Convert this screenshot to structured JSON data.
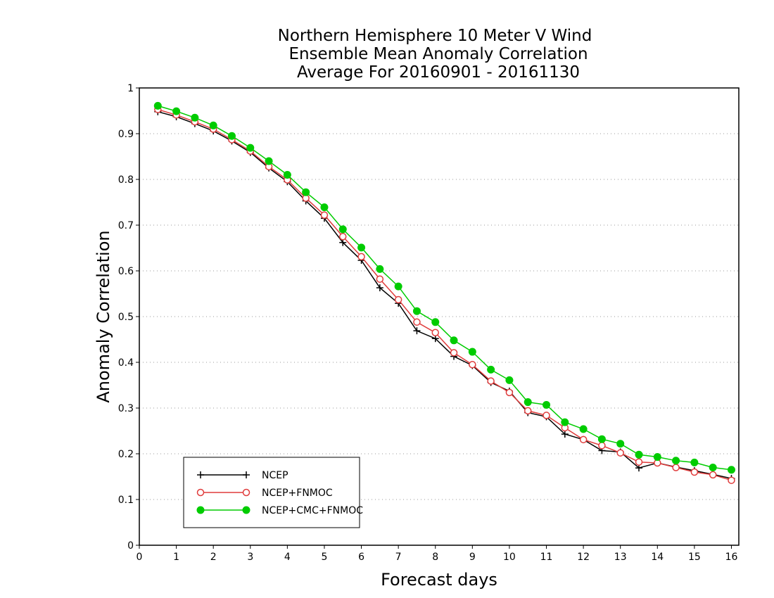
{
  "chart_data": {
    "type": "line",
    "title": [
      "Northern Hemisphere 10 Meter V Wind",
      "Ensemble Mean Anomaly Correlation",
      "Average For 20160901 - 20161130"
    ],
    "xlabel": "Forecast days",
    "ylabel": "Anomaly Correlation",
    "xlim": [
      0,
      16.2
    ],
    "ylim": [
      0,
      1
    ],
    "x_ticks": [
      0,
      1,
      2,
      3,
      4,
      5,
      6,
      7,
      8,
      9,
      10,
      11,
      12,
      13,
      14,
      15,
      16
    ],
    "y_ticks": [
      0,
      0.1,
      0.2,
      0.3,
      0.4,
      0.5,
      0.6,
      0.7,
      0.8,
      0.9,
      1
    ],
    "y_tick_labels": [
      "0",
      "0.1",
      "0.2",
      "0.3",
      "0.4",
      "0.5",
      "0.6",
      "0.7",
      "0.8",
      "0.9",
      "1"
    ],
    "grid": "horizontal dotted",
    "legend_position": "bottom-left",
    "x": [
      0.5,
      1,
      1.5,
      2,
      2.5,
      3,
      3.5,
      4,
      4.5,
      5,
      5.5,
      6,
      6.5,
      7,
      7.5,
      8,
      8.5,
      9,
      9.5,
      10,
      10.5,
      11,
      11.5,
      12,
      12.5,
      13,
      13.5,
      14,
      14.5,
      15,
      15.5,
      16
    ],
    "series": [
      {
        "name": "NCEP",
        "color": "#000000",
        "marker": "plus",
        "values": [
          0.948,
          0.937,
          0.922,
          0.906,
          0.884,
          0.859,
          0.825,
          0.795,
          0.753,
          0.715,
          0.662,
          0.623,
          0.563,
          0.529,
          0.469,
          0.452,
          0.413,
          0.393,
          0.356,
          0.337,
          0.29,
          0.281,
          0.243,
          0.231,
          0.207,
          0.204,
          0.169,
          0.18,
          0.171,
          0.163,
          0.155,
          0.146
        ]
      },
      {
        "name": "NCEP+FNMOC",
        "color": "#e03c3c",
        "marker": "open-circle",
        "values": [
          0.953,
          0.941,
          0.926,
          0.91,
          0.887,
          0.862,
          0.828,
          0.799,
          0.759,
          0.722,
          0.675,
          0.631,
          0.582,
          0.537,
          0.488,
          0.465,
          0.421,
          0.395,
          0.359,
          0.334,
          0.294,
          0.284,
          0.257,
          0.231,
          0.218,
          0.202,
          0.182,
          0.18,
          0.17,
          0.16,
          0.154,
          0.142
        ]
      },
      {
        "name": "NCEP+CMC+FNMOC",
        "color": "#00cc00",
        "marker": "filled-circle",
        "values": [
          0.961,
          0.949,
          0.935,
          0.918,
          0.895,
          0.869,
          0.84,
          0.81,
          0.772,
          0.739,
          0.691,
          0.651,
          0.604,
          0.566,
          0.512,
          0.488,
          0.448,
          0.423,
          0.384,
          0.361,
          0.313,
          0.307,
          0.269,
          0.254,
          0.232,
          0.222,
          0.198,
          0.193,
          0.185,
          0.181,
          0.17,
          0.165
        ]
      }
    ]
  }
}
